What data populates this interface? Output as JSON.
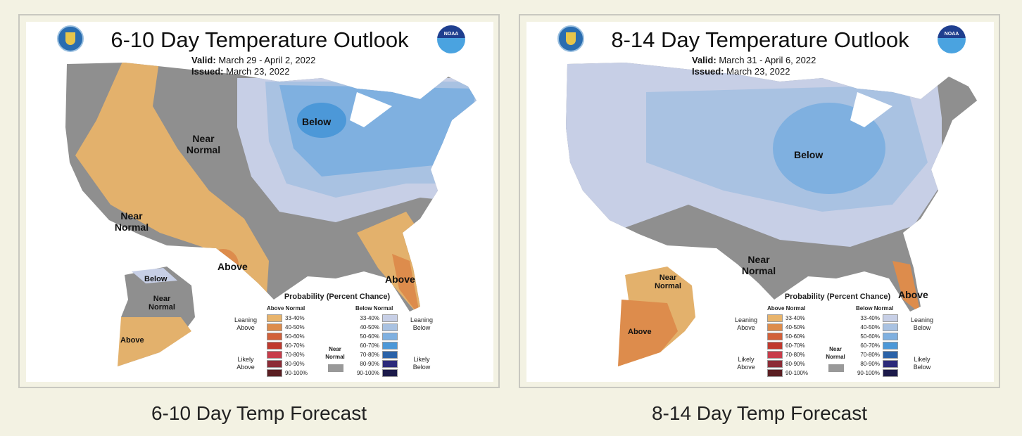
{
  "maps": [
    {
      "title": "6-10 Day Temperature Outlook",
      "valid_label": "Valid:",
      "valid": "March 29 - April 2, 2022",
      "issued_label": "Issued:",
      "issued": "March 23, 2022",
      "labels": [
        "Below",
        "Near Normal",
        "Near Normal",
        "Above",
        "Above",
        "Below",
        "Near Normal",
        "Above"
      ],
      "caption": "6-10 Day Temp Forecast"
    },
    {
      "title": "8-14 Day Temperature Outlook",
      "valid_label": "Valid:",
      "valid": "March 31 - April 6, 2022",
      "issued_label": "Issued:",
      "issued": "March 23, 2022",
      "labels": [
        "Below",
        "Near Normal",
        "Above",
        "Near Normal",
        "Above"
      ],
      "caption": "8-14 Day Temp Forecast"
    }
  ],
  "noaa_logo": "NOAA",
  "legend": {
    "title": "Probability (Percent Chance)",
    "above_header": "Above Normal",
    "below_header": "Below Normal",
    "near": "Near Normal",
    "leaning_above": "Leaning Above",
    "likely_above": "Likely Above",
    "leaning_below": "Leaning Below",
    "likely_below": "Likely Below",
    "ranges": [
      "33-40%",
      "40-50%",
      "50-60%",
      "60-70%",
      "70-80%",
      "80-90%",
      "90-100%"
    ],
    "above_colors": [
      "#e8b46c",
      "#dd8c4c",
      "#d2603a",
      "#c0392e",
      "#c83c4a",
      "#8c2c36",
      "#5a1e22"
    ],
    "below_colors": [
      "#c7cfe6",
      "#a9c2e2",
      "#7fb0e0",
      "#4c98d8",
      "#2a62a8",
      "#2c2a7a",
      "#1c1a4a"
    ],
    "near_color": "#999999"
  }
}
